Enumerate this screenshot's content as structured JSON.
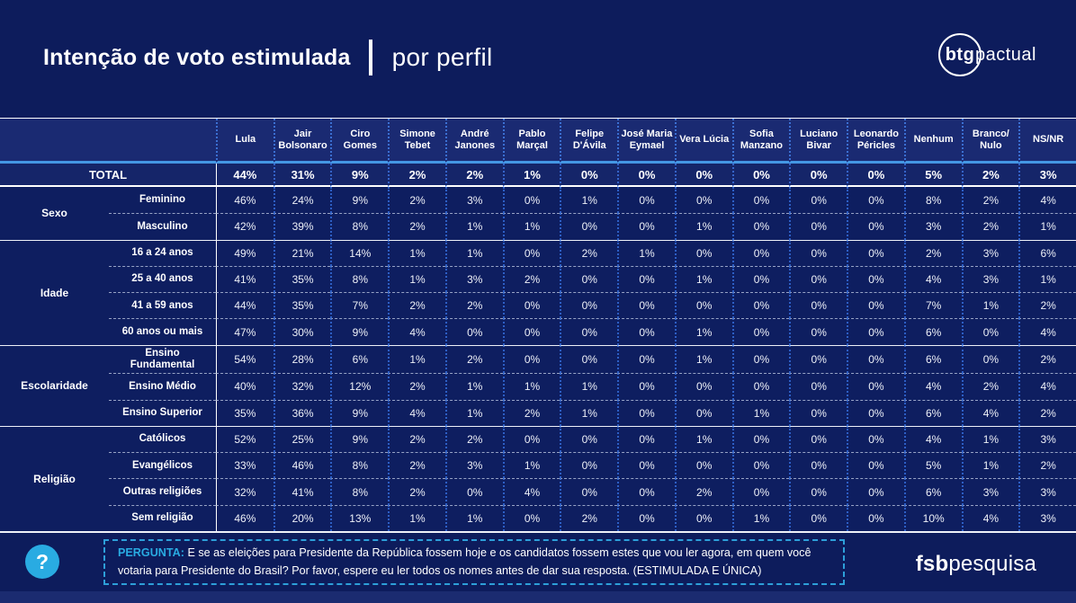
{
  "header": {
    "title_bold": "Intenção de voto estimulada",
    "title_light": "por perfil",
    "brand_bold": "btg",
    "brand_light": "pactual"
  },
  "colors": {
    "background": "#0d1c5c",
    "header_row": "#1a2a72",
    "accent_light_blue": "#29abe2",
    "header_underline_blue": "#4497e4",
    "dotted_divider_blue": "#2d5ec4"
  },
  "chart_data": {
    "type": "table",
    "title": "Intenção de voto estimulada por perfil",
    "columns": [
      "Lula",
      "Jair Bolsonaro",
      "Ciro Gomes",
      "Simone Tebet",
      "André Janones",
      "Pablo Marçal",
      "Felipe D'Ávila",
      "José Maria Eymael",
      "Vera Lúcia",
      "Sofia Manzano",
      "Luciano Bivar",
      "Leonardo Péricles",
      "Nenhum",
      "Branco/Nulo",
      "NS/NR"
    ],
    "total_label": "TOTAL",
    "total": [
      "44%",
      "31%",
      "9%",
      "2%",
      "2%",
      "1%",
      "0%",
      "0%",
      "0%",
      "0%",
      "0%",
      "0%",
      "5%",
      "2%",
      "3%"
    ],
    "groups": [
      {
        "label": "Sexo",
        "rows": [
          {
            "label": "Feminino",
            "values": [
              "46%",
              "24%",
              "9%",
              "2%",
              "3%",
              "0%",
              "1%",
              "0%",
              "0%",
              "0%",
              "0%",
              "0%",
              "8%",
              "2%",
              "4%"
            ]
          },
          {
            "label": "Masculino",
            "values": [
              "42%",
              "39%",
              "8%",
              "2%",
              "1%",
              "1%",
              "0%",
              "0%",
              "1%",
              "0%",
              "0%",
              "0%",
              "3%",
              "2%",
              "1%"
            ]
          }
        ]
      },
      {
        "label": "Idade",
        "rows": [
          {
            "label": "16 a 24 anos",
            "values": [
              "49%",
              "21%",
              "14%",
              "1%",
              "1%",
              "0%",
              "2%",
              "1%",
              "0%",
              "0%",
              "0%",
              "0%",
              "2%",
              "3%",
              "6%"
            ]
          },
          {
            "label": "25 a 40 anos",
            "values": [
              "41%",
              "35%",
              "8%",
              "1%",
              "3%",
              "2%",
              "0%",
              "0%",
              "1%",
              "0%",
              "0%",
              "0%",
              "4%",
              "3%",
              "1%"
            ]
          },
          {
            "label": "41 a 59 anos",
            "values": [
              "44%",
              "35%",
              "7%",
              "2%",
              "2%",
              "0%",
              "0%",
              "0%",
              "0%",
              "0%",
              "0%",
              "0%",
              "7%",
              "1%",
              "2%"
            ]
          },
          {
            "label": "60 anos ou mais",
            "values": [
              "47%",
              "30%",
              "9%",
              "4%",
              "0%",
              "0%",
              "0%",
              "0%",
              "1%",
              "0%",
              "0%",
              "0%",
              "6%",
              "0%",
              "4%"
            ]
          }
        ]
      },
      {
        "label": "Escolaridade",
        "rows": [
          {
            "label": "Ensino Fundamental",
            "values": [
              "54%",
              "28%",
              "6%",
              "1%",
              "2%",
              "0%",
              "0%",
              "0%",
              "1%",
              "0%",
              "0%",
              "0%",
              "6%",
              "0%",
              "2%"
            ]
          },
          {
            "label": "Ensino Médio",
            "values": [
              "40%",
              "32%",
              "12%",
              "2%",
              "1%",
              "1%",
              "1%",
              "0%",
              "0%",
              "0%",
              "0%",
              "0%",
              "4%",
              "2%",
              "4%"
            ]
          },
          {
            "label": "Ensino Superior",
            "values": [
              "35%",
              "36%",
              "9%",
              "4%",
              "1%",
              "2%",
              "1%",
              "0%",
              "0%",
              "1%",
              "0%",
              "0%",
              "6%",
              "4%",
              "2%"
            ]
          }
        ]
      },
      {
        "label": "Religião",
        "rows": [
          {
            "label": "Católicos",
            "values": [
              "52%",
              "25%",
              "9%",
              "2%",
              "2%",
              "0%",
              "0%",
              "0%",
              "1%",
              "0%",
              "0%",
              "0%",
              "4%",
              "1%",
              "3%"
            ]
          },
          {
            "label": "Evangélicos",
            "values": [
              "33%",
              "46%",
              "8%",
              "2%",
              "3%",
              "1%",
              "0%",
              "0%",
              "0%",
              "0%",
              "0%",
              "0%",
              "5%",
              "1%",
              "2%"
            ]
          },
          {
            "label": "Outras religiões",
            "values": [
              "32%",
              "41%",
              "8%",
              "2%",
              "0%",
              "4%",
              "0%",
              "0%",
              "2%",
              "0%",
              "0%",
              "0%",
              "6%",
              "3%",
              "3%"
            ]
          },
          {
            "label": "Sem religião",
            "values": [
              "46%",
              "20%",
              "13%",
              "1%",
              "1%",
              "0%",
              "2%",
              "0%",
              "0%",
              "1%",
              "0%",
              "0%",
              "10%",
              "4%",
              "3%"
            ]
          }
        ]
      }
    ]
  },
  "footer": {
    "question_icon": "?",
    "question_label": "PERGUNTA:",
    "question_text": "E se as eleições para Presidente da República fossem hoje e os candidatos fossem estes que vou ler agora, em quem você votaria para Presidente do Brasil? Por favor, espere eu ler todos os nomes antes de dar sua resposta. (ESTIMULADA E ÚNICA)",
    "brand_bold": "fsb",
    "brand_light": "pesquisa"
  }
}
